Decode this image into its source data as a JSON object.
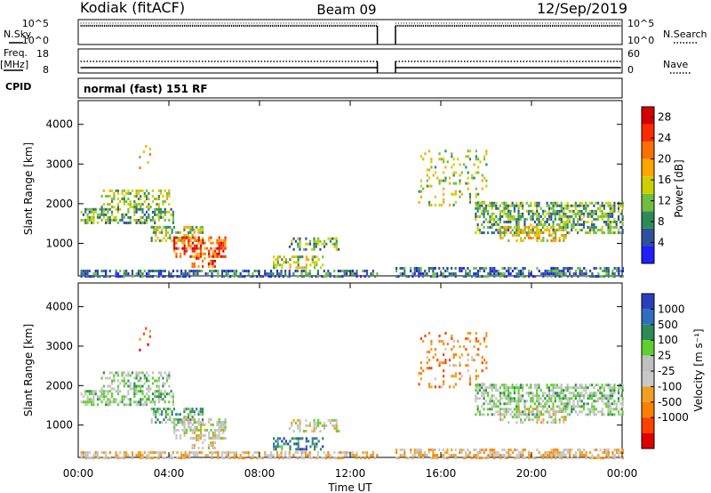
{
  "header": {
    "station": "Kodiak (fitACF)",
    "beam": "Beam 09",
    "date": "12/Sep/2019"
  },
  "strip_labels": {
    "nsky": "N.Sky",
    "nsearch": "N.Search",
    "freq": "Freq.",
    "mhz": "[MHz]",
    "nave": "Nave",
    "cpid": "CPID",
    "mode": "normal (fast) 151 RF",
    "sky_ticks": [
      "10^5",
      "10^0"
    ],
    "search_ticks": [
      "10^5",
      "10^0"
    ],
    "freq_ticks": [
      "18",
      "8"
    ],
    "nave_ticks": [
      "60",
      "0"
    ]
  },
  "colors": {
    "power": [
      "#1f1fff",
      "#2f4f9f",
      "#2e8b57",
      "#6fbf3f",
      "#cfcf00",
      "#ffa500",
      "#ff6f00",
      "#ff2a00",
      "#d40000"
    ],
    "velocity": [
      "#2a3fbf",
      "#2f6fbf",
      "#2e8b57",
      "#5fcf2f",
      "#c0c0c0",
      "#c8c8c8",
      "#f0a020",
      "#ff8000",
      "#ff4000",
      "#e00000"
    ]
  },
  "chart_data": [
    {
      "type": "heatmap",
      "title": "Power",
      "x": [
        "00:00",
        "04:00",
        "08:00",
        "12:00",
        "16:00",
        "20:00",
        "00:00"
      ],
      "xlabel": "",
      "ylabel": "Slant Range [km]",
      "xlim_hours": [
        0,
        24
      ],
      "ylim": [
        180,
        4600
      ],
      "yticks": [
        "1000",
        "2000",
        "3000",
        "4000"
      ],
      "colorbar": {
        "label": "Power [dB]",
        "ticks": [
          "4",
          "8",
          "12",
          "16",
          "20",
          "24",
          "28"
        ],
        "range": [
          0,
          30
        ]
      },
      "data_gap_hours": [
        13.2,
        14.0
      ]
    },
    {
      "type": "heatmap",
      "title": "Velocity",
      "x": [
        "00:00",
        "04:00",
        "08:00",
        "12:00",
        "16:00",
        "20:00",
        "00:00"
      ],
      "xlabel": "Time UT",
      "ylabel": "Slant Range [km]",
      "xlim_hours": [
        0,
        24
      ],
      "ylim": [
        180,
        4600
      ],
      "yticks": [
        "1000",
        "2000",
        "3000",
        "4000"
      ],
      "colorbar": {
        "label": "Velocity [m s⁻¹]",
        "ticks": [
          "1000",
          "500",
          "100",
          "25",
          "-25",
          "-100",
          "-500",
          "-1000"
        ]
      },
      "data_gap_hours": [
        13.2,
        14.0
      ]
    }
  ]
}
